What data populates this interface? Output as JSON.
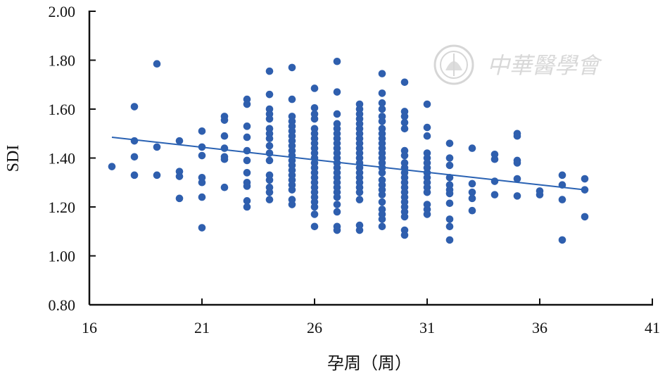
{
  "chart_data": {
    "type": "scatter",
    "title": "",
    "xlabel": "孕周（周）",
    "ylabel": "SDI",
    "xlim": [
      16,
      41
    ],
    "ylim": [
      0.8,
      2.0
    ],
    "xticks": [
      "16",
      "21",
      "26",
      "31",
      "36",
      "41"
    ],
    "yticks": [
      "0.80",
      "1.00",
      "1.20",
      "1.40",
      "1.60",
      "1.80",
      "2.00"
    ],
    "grid": false,
    "legend": "none",
    "point_color": "#2f5fae",
    "line_color": "#2a62b3",
    "points": [
      {
        "x": 17,
        "y": 1.365
      },
      {
        "x": 18,
        "y": 1.61
      },
      {
        "x": 18,
        "y": 1.47
      },
      {
        "x": 18,
        "y": 1.405
      },
      {
        "x": 18,
        "y": 1.33
      },
      {
        "x": 19,
        "y": 1.785
      },
      {
        "x": 19,
        "y": 1.445
      },
      {
        "x": 19,
        "y": 1.33
      },
      {
        "x": 20,
        "y": 1.47
      },
      {
        "x": 20,
        "y": 1.345
      },
      {
        "x": 20,
        "y": 1.325
      },
      {
        "x": 20,
        "y": 1.235
      },
      {
        "x": 21,
        "y": 1.51
      },
      {
        "x": 21,
        "y": 1.445
      },
      {
        "x": 21,
        "y": 1.41
      },
      {
        "x": 21,
        "y": 1.32
      },
      {
        "x": 21,
        "y": 1.3
      },
      {
        "x": 21,
        "y": 1.24
      },
      {
        "x": 21,
        "y": 1.115
      },
      {
        "x": 22,
        "y": 1.57
      },
      {
        "x": 22,
        "y": 1.555
      },
      {
        "x": 22,
        "y": 1.49
      },
      {
        "x": 22,
        "y": 1.44
      },
      {
        "x": 22,
        "y": 1.405
      },
      {
        "x": 22,
        "y": 1.395
      },
      {
        "x": 22,
        "y": 1.28
      },
      {
        "x": 23,
        "y": 1.64
      },
      {
        "x": 23,
        "y": 1.62
      },
      {
        "x": 23,
        "y": 1.53
      },
      {
        "x": 23,
        "y": 1.485
      },
      {
        "x": 23,
        "y": 1.43
      },
      {
        "x": 23,
        "y": 1.39
      },
      {
        "x": 23,
        "y": 1.34
      },
      {
        "x": 23,
        "y": 1.3
      },
      {
        "x": 23,
        "y": 1.285
      },
      {
        "x": 23,
        "y": 1.225
      },
      {
        "x": 23,
        "y": 1.2
      },
      {
        "x": 24,
        "y": 1.755
      },
      {
        "x": 24,
        "y": 1.66
      },
      {
        "x": 24,
        "y": 1.6
      },
      {
        "x": 24,
        "y": 1.58
      },
      {
        "x": 24,
        "y": 1.56
      },
      {
        "x": 24,
        "y": 1.52
      },
      {
        "x": 24,
        "y": 1.5
      },
      {
        "x": 24,
        "y": 1.48
      },
      {
        "x": 24,
        "y": 1.45
      },
      {
        "x": 24,
        "y": 1.42
      },
      {
        "x": 24,
        "y": 1.39
      },
      {
        "x": 24,
        "y": 1.33
      },
      {
        "x": 24,
        "y": 1.31
      },
      {
        "x": 24,
        "y": 1.28
      },
      {
        "x": 24,
        "y": 1.26
      },
      {
        "x": 24,
        "y": 1.23
      },
      {
        "x": 25,
        "y": 1.77
      },
      {
        "x": 25,
        "y": 1.64
      },
      {
        "x": 25,
        "y": 1.57
      },
      {
        "x": 25,
        "y": 1.55
      },
      {
        "x": 25,
        "y": 1.53
      },
      {
        "x": 25,
        "y": 1.51
      },
      {
        "x": 25,
        "y": 1.49
      },
      {
        "x": 25,
        "y": 1.47
      },
      {
        "x": 25,
        "y": 1.45
      },
      {
        "x": 25,
        "y": 1.43
      },
      {
        "x": 25,
        "y": 1.41
      },
      {
        "x": 25,
        "y": 1.39
      },
      {
        "x": 25,
        "y": 1.37
      },
      {
        "x": 25,
        "y": 1.35
      },
      {
        "x": 25,
        "y": 1.33
      },
      {
        "x": 25,
        "y": 1.31
      },
      {
        "x": 25,
        "y": 1.29
      },
      {
        "x": 25,
        "y": 1.27
      },
      {
        "x": 25,
        "y": 1.23
      },
      {
        "x": 25,
        "y": 1.21
      },
      {
        "x": 26,
        "y": 1.685
      },
      {
        "x": 26,
        "y": 1.605
      },
      {
        "x": 26,
        "y": 1.58
      },
      {
        "x": 26,
        "y": 1.56
      },
      {
        "x": 26,
        "y": 1.52
      },
      {
        "x": 26,
        "y": 1.5
      },
      {
        "x": 26,
        "y": 1.48
      },
      {
        "x": 26,
        "y": 1.46
      },
      {
        "x": 26,
        "y": 1.44
      },
      {
        "x": 26,
        "y": 1.42
      },
      {
        "x": 26,
        "y": 1.4
      },
      {
        "x": 26,
        "y": 1.38
      },
      {
        "x": 26,
        "y": 1.36
      },
      {
        "x": 26,
        "y": 1.34
      },
      {
        "x": 26,
        "y": 1.32
      },
      {
        "x": 26,
        "y": 1.3
      },
      {
        "x": 26,
        "y": 1.28
      },
      {
        "x": 26,
        "y": 1.26
      },
      {
        "x": 26,
        "y": 1.24
      },
      {
        "x": 26,
        "y": 1.22
      },
      {
        "x": 26,
        "y": 1.2
      },
      {
        "x": 26,
        "y": 1.17
      },
      {
        "x": 26,
        "y": 1.12
      },
      {
        "x": 27,
        "y": 1.795
      },
      {
        "x": 27,
        "y": 1.67
      },
      {
        "x": 27,
        "y": 1.58
      },
      {
        "x": 27,
        "y": 1.54
      },
      {
        "x": 27,
        "y": 1.52
      },
      {
        "x": 27,
        "y": 1.5
      },
      {
        "x": 27,
        "y": 1.48
      },
      {
        "x": 27,
        "y": 1.46
      },
      {
        "x": 27,
        "y": 1.44
      },
      {
        "x": 27,
        "y": 1.42
      },
      {
        "x": 27,
        "y": 1.4
      },
      {
        "x": 27,
        "y": 1.38
      },
      {
        "x": 27,
        "y": 1.36
      },
      {
        "x": 27,
        "y": 1.34
      },
      {
        "x": 27,
        "y": 1.32
      },
      {
        "x": 27,
        "y": 1.3
      },
      {
        "x": 27,
        "y": 1.28
      },
      {
        "x": 27,
        "y": 1.26
      },
      {
        "x": 27,
        "y": 1.24
      },
      {
        "x": 27,
        "y": 1.21
      },
      {
        "x": 27,
        "y": 1.18
      },
      {
        "x": 27,
        "y": 1.12
      },
      {
        "x": 27,
        "y": 1.105
      },
      {
        "x": 28,
        "y": 1.62
      },
      {
        "x": 28,
        "y": 1.6
      },
      {
        "x": 28,
        "y": 1.58
      },
      {
        "x": 28,
        "y": 1.56
      },
      {
        "x": 28,
        "y": 1.54
      },
      {
        "x": 28,
        "y": 1.52
      },
      {
        "x": 28,
        "y": 1.5
      },
      {
        "x": 28,
        "y": 1.48
      },
      {
        "x": 28,
        "y": 1.46
      },
      {
        "x": 28,
        "y": 1.44
      },
      {
        "x": 28,
        "y": 1.42
      },
      {
        "x": 28,
        "y": 1.4
      },
      {
        "x": 28,
        "y": 1.38
      },
      {
        "x": 28,
        "y": 1.36
      },
      {
        "x": 28,
        "y": 1.34
      },
      {
        "x": 28,
        "y": 1.32
      },
      {
        "x": 28,
        "y": 1.3
      },
      {
        "x": 28,
        "y": 1.28
      },
      {
        "x": 28,
        "y": 1.26
      },
      {
        "x": 28,
        "y": 1.23
      },
      {
        "x": 28,
        "y": 1.125
      },
      {
        "x": 28,
        "y": 1.105
      },
      {
        "x": 29,
        "y": 1.745
      },
      {
        "x": 29,
        "y": 1.665
      },
      {
        "x": 29,
        "y": 1.625
      },
      {
        "x": 29,
        "y": 1.6
      },
      {
        "x": 29,
        "y": 1.57
      },
      {
        "x": 29,
        "y": 1.55
      },
      {
        "x": 29,
        "y": 1.52
      },
      {
        "x": 29,
        "y": 1.5
      },
      {
        "x": 29,
        "y": 1.48
      },
      {
        "x": 29,
        "y": 1.46
      },
      {
        "x": 29,
        "y": 1.44
      },
      {
        "x": 29,
        "y": 1.42
      },
      {
        "x": 29,
        "y": 1.4
      },
      {
        "x": 29,
        "y": 1.38
      },
      {
        "x": 29,
        "y": 1.36
      },
      {
        "x": 29,
        "y": 1.34
      },
      {
        "x": 29,
        "y": 1.31
      },
      {
        "x": 29,
        "y": 1.29
      },
      {
        "x": 29,
        "y": 1.27
      },
      {
        "x": 29,
        "y": 1.25
      },
      {
        "x": 29,
        "y": 1.22
      },
      {
        "x": 29,
        "y": 1.19
      },
      {
        "x": 29,
        "y": 1.17
      },
      {
        "x": 29,
        "y": 1.15
      },
      {
        "x": 29,
        "y": 1.12
      },
      {
        "x": 30,
        "y": 1.71
      },
      {
        "x": 30,
        "y": 1.59
      },
      {
        "x": 30,
        "y": 1.57
      },
      {
        "x": 30,
        "y": 1.545
      },
      {
        "x": 30,
        "y": 1.52
      },
      {
        "x": 30,
        "y": 1.43
      },
      {
        "x": 30,
        "y": 1.41
      },
      {
        "x": 30,
        "y": 1.38
      },
      {
        "x": 30,
        "y": 1.36
      },
      {
        "x": 30,
        "y": 1.34
      },
      {
        "x": 30,
        "y": 1.32
      },
      {
        "x": 30,
        "y": 1.3
      },
      {
        "x": 30,
        "y": 1.28
      },
      {
        "x": 30,
        "y": 1.26
      },
      {
        "x": 30,
        "y": 1.24
      },
      {
        "x": 30,
        "y": 1.22
      },
      {
        "x": 30,
        "y": 1.2
      },
      {
        "x": 30,
        "y": 1.18
      },
      {
        "x": 30,
        "y": 1.16
      },
      {
        "x": 30,
        "y": 1.105
      },
      {
        "x": 30,
        "y": 1.085
      },
      {
        "x": 31,
        "y": 1.62
      },
      {
        "x": 31,
        "y": 1.525
      },
      {
        "x": 31,
        "y": 1.49
      },
      {
        "x": 31,
        "y": 1.42
      },
      {
        "x": 31,
        "y": 1.4
      },
      {
        "x": 31,
        "y": 1.38
      },
      {
        "x": 31,
        "y": 1.36
      },
      {
        "x": 31,
        "y": 1.34
      },
      {
        "x": 31,
        "y": 1.32
      },
      {
        "x": 31,
        "y": 1.3
      },
      {
        "x": 31,
        "y": 1.28
      },
      {
        "x": 31,
        "y": 1.26
      },
      {
        "x": 31,
        "y": 1.21
      },
      {
        "x": 31,
        "y": 1.19
      },
      {
        "x": 31,
        "y": 1.17
      },
      {
        "x": 32,
        "y": 1.46
      },
      {
        "x": 32,
        "y": 1.4
      },
      {
        "x": 32,
        "y": 1.37
      },
      {
        "x": 32,
        "y": 1.32
      },
      {
        "x": 32,
        "y": 1.29
      },
      {
        "x": 32,
        "y": 1.27
      },
      {
        "x": 32,
        "y": 1.255
      },
      {
        "x": 32,
        "y": 1.215
      },
      {
        "x": 32,
        "y": 1.15
      },
      {
        "x": 32,
        "y": 1.12
      },
      {
        "x": 32,
        "y": 1.065
      },
      {
        "x": 33,
        "y": 1.44
      },
      {
        "x": 33,
        "y": 1.295
      },
      {
        "x": 33,
        "y": 1.26
      },
      {
        "x": 33,
        "y": 1.235
      },
      {
        "x": 33,
        "y": 1.185
      },
      {
        "x": 34,
        "y": 1.415
      },
      {
        "x": 34,
        "y": 1.395
      },
      {
        "x": 34,
        "y": 1.305
      },
      {
        "x": 34,
        "y": 1.25
      },
      {
        "x": 35,
        "y": 1.5
      },
      {
        "x": 35,
        "y": 1.49
      },
      {
        "x": 35,
        "y": 1.39
      },
      {
        "x": 35,
        "y": 1.38
      },
      {
        "x": 35,
        "y": 1.315
      },
      {
        "x": 35,
        "y": 1.245
      },
      {
        "x": 36,
        "y": 1.265
      },
      {
        "x": 36,
        "y": 1.25
      },
      {
        "x": 37,
        "y": 1.33
      },
      {
        "x": 37,
        "y": 1.29
      },
      {
        "x": 37,
        "y": 1.23
      },
      {
        "x": 37,
        "y": 1.065
      },
      {
        "x": 38,
        "y": 1.315
      },
      {
        "x": 38,
        "y": 1.27
      },
      {
        "x": 38,
        "y": 1.16
      }
    ],
    "trendline": {
      "x": [
        17,
        38
      ],
      "y": [
        1.485,
        1.27
      ]
    }
  },
  "watermark": {
    "text": "中華醫學會",
    "icon": "society-emblem-icon"
  }
}
